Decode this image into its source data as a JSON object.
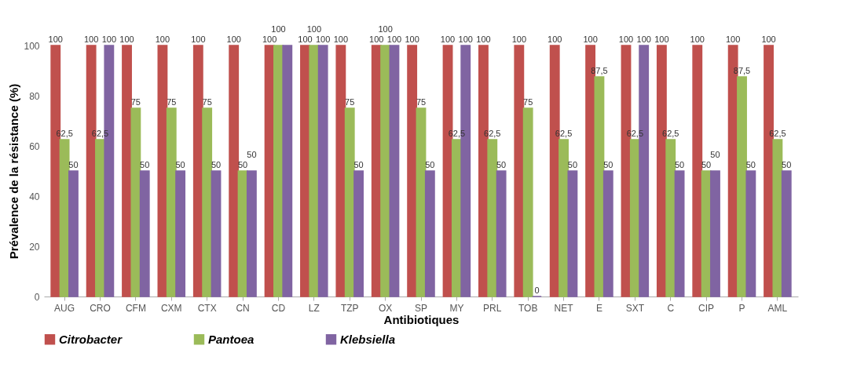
{
  "chart_data": {
    "type": "bar",
    "xlabel": "Antibiotiques",
    "ylabel": "Prévalence de la résistance (%)",
    "categories": [
      "AUG",
      "CRO",
      "CFM",
      "CXM",
      "CTX",
      "CN",
      "CD",
      "LZ",
      "TZP",
      "OX",
      "SP",
      "MY",
      "PRL",
      "TOB",
      "NET",
      "E",
      "SXT",
      "C",
      "CIP",
      "P",
      "AML"
    ],
    "series": [
      {
        "name": "Citrobacter",
        "color": "#c0504d",
        "values": [
          100,
          100,
          100,
          100,
          100,
          100,
          100,
          100,
          100,
          100,
          100,
          100,
          100,
          100,
          100,
          100,
          100,
          100,
          100,
          100,
          100
        ],
        "value_labels": [
          "100",
          "100",
          "100",
          "100",
          "100",
          "100",
          "100",
          "100",
          "100",
          "100",
          "100",
          "100",
          "100",
          "100",
          "100",
          "100",
          "100",
          "100",
          "100",
          "100",
          "100"
        ]
      },
      {
        "name": "Pantoea",
        "color": "#9bbb59",
        "values": [
          62.5,
          62.5,
          75,
          75,
          75,
          50,
          100,
          100,
          75,
          100,
          75,
          62.5,
          62.5,
          75,
          62.5,
          87.5,
          62.5,
          62.5,
          50,
          87.5,
          62.5
        ],
        "value_labels": [
          "62,5",
          "62,5",
          "75",
          "75",
          "75",
          "50",
          "100",
          "100",
          "75",
          "100",
          "75",
          "62,5",
          "62,5",
          "75",
          "62,5",
          "87,5",
          "62,5",
          "62,5",
          "50",
          "87,5",
          "62,5"
        ]
      },
      {
        "name": "Klebsiella",
        "color": "#8064a2",
        "values": [
          50,
          100,
          50,
          50,
          50,
          50,
          100,
          100,
          50,
          100,
          50,
          100,
          50,
          0,
          50,
          50,
          100,
          50,
          50,
          50,
          50
        ],
        "value_labels": [
          "50",
          "100",
          "50",
          "50",
          "50",
          "50",
          null,
          "100",
          "50",
          "100",
          "50",
          "100",
          "50",
          "0",
          "50",
          "50",
          "100",
          "50",
          "50",
          "50",
          "50"
        ]
      }
    ],
    "ylim": [
      0,
      100
    ],
    "yticks": [
      0,
      20,
      40,
      60,
      80,
      100
    ],
    "grid": false,
    "legend": "bottom",
    "marker": "square"
  }
}
